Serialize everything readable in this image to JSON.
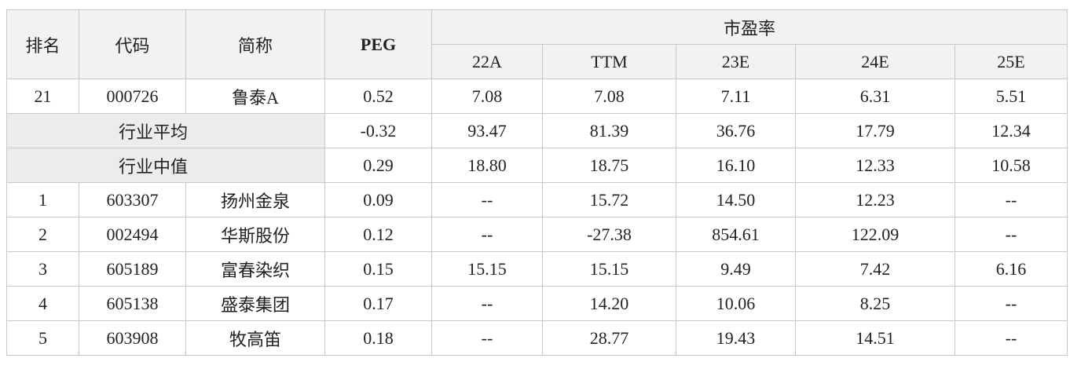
{
  "table": {
    "header": [
      "排名",
      "代码",
      "简称",
      "PEG"
    ],
    "group": "市盈率",
    "subheader": [
      "22A",
      "TTM",
      "23E",
      "24E",
      "25E"
    ],
    "rows": [
      [
        "21",
        "000726",
        "鲁泰A",
        "0.52",
        "7.08",
        "7.08",
        "7.11",
        "6.31",
        "5.51"
      ],
      [
        "行业平均",
        "-0.32",
        "93.47",
        "81.39",
        "36.76",
        "17.79",
        "12.34"
      ],
      [
        "行业中值",
        "0.29",
        "18.80",
        "18.75",
        "16.10",
        "12.33",
        "10.58"
      ],
      [
        "1",
        "603307",
        "扬州金泉",
        "0.09",
        "--",
        "15.72",
        "14.50",
        "12.23",
        "--"
      ],
      [
        "2",
        "002494",
        "华斯股份",
        "0.12",
        "--",
        "-27.38",
        "854.61",
        "122.09",
        "--"
      ],
      [
        "3",
        "605189",
        "富春染织",
        "0.15",
        "15.15",
        "15.15",
        "9.49",
        "7.42",
        "6.16"
      ],
      [
        "4",
        "605138",
        "盛泰集团",
        "0.17",
        "--",
        "14.20",
        "10.06",
        "8.25",
        "--"
      ],
      [
        "5",
        "603908",
        "牧高笛",
        "0.18",
        "--",
        "28.77",
        "19.43",
        "14.51",
        "--"
      ]
    ]
  }
}
